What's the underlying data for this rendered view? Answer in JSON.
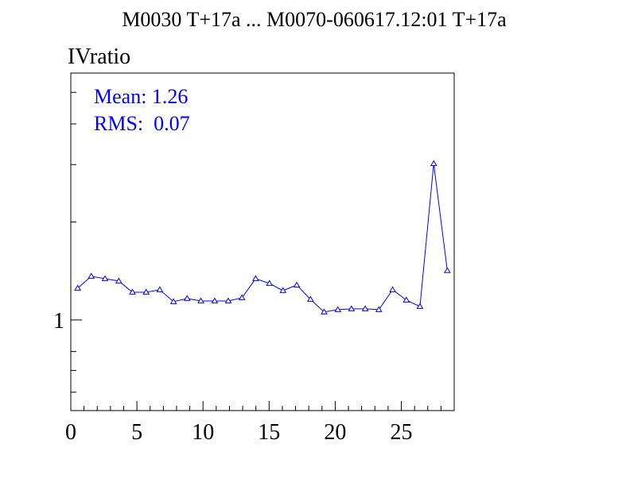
{
  "chart_data": {
    "type": "line",
    "title": "M0030 T+17a ... M0070-060617.12:01 T+17a",
    "ylabel": "IVratio",
    "stats": [
      "Mean: 1.26",
      "RMS:  0.07"
    ],
    "color": "#0000ff",
    "marker": "triangle-open",
    "log_y": true,
    "x": [
      0.52,
      1.55,
      2.59,
      3.63,
      4.66,
      5.7,
      6.73,
      7.77,
      8.8,
      9.84,
      10.88,
      11.91,
      12.95,
      13.98,
      15.02,
      16.05,
      17.09,
      18.13,
      19.16,
      20.2,
      21.23,
      22.27,
      23.3,
      24.34,
      25.38,
      26.41,
      27.45,
      28.48
    ],
    "values": [
      1.252,
      1.362,
      1.339,
      1.317,
      1.217,
      1.217,
      1.238,
      1.138,
      1.164,
      1.144,
      1.144,
      1.144,
      1.17,
      1.339,
      1.295,
      1.231,
      1.28,
      1.157,
      1.058,
      1.076,
      1.082,
      1.082,
      1.076,
      1.238,
      1.151,
      1.1,
      3.02,
      1.417
    ],
    "xlim": [
      0,
      29
    ],
    "xticks": [
      0,
      5,
      10,
      15,
      20,
      25
    ],
    "xminor_ticks": [
      1,
      2,
      3,
      4,
      6,
      7,
      8,
      9,
      11,
      12,
      13,
      14,
      16,
      17,
      18,
      19,
      21,
      22,
      23,
      24,
      26,
      27,
      28
    ],
    "ylim": [
      0.527,
      5.73
    ],
    "yticks": [
      1
    ],
    "yminor_ticks": [
      0.6,
      0.7,
      0.8,
      2,
      3,
      4,
      5
    ]
  }
}
